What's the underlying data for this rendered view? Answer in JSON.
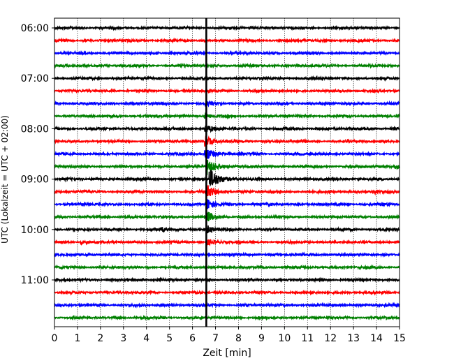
{
  "chart_data": {
    "type": "line",
    "title": "",
    "xlabel": "Zeit  [min]",
    "ylabel": "UTC (Lokalzeit = UTC + 02:00)",
    "xlim": [
      0,
      15
    ],
    "x_ticks": [
      0,
      1,
      2,
      3,
      4,
      5,
      6,
      7,
      8,
      9,
      10,
      11,
      12,
      13,
      14,
      15
    ],
    "x_grid": true,
    "y_ticks": [
      {
        "label": "06:00",
        "row": 0
      },
      {
        "label": "07:00",
        "row": 4
      },
      {
        "label": "08:00",
        "row": 8
      },
      {
        "label": "09:00",
        "row": 12
      },
      {
        "label": "10:00",
        "row": 16
      },
      {
        "label": "11:00",
        "row": 20
      }
    ],
    "rows": 24,
    "row_minutes": 15,
    "row_colors": [
      "#000000",
      "#ff0000",
      "#0000ff",
      "#008000"
    ],
    "marker_minute": 6.6,
    "events": [
      {
        "row": 0,
        "minute": 1.2,
        "amplitude": 0.35
      },
      {
        "row": 1,
        "minute": 8.4,
        "amplitude": 0.3
      },
      {
        "row": 6,
        "minute": 6.6,
        "amplitude": 1.8
      },
      {
        "row": 7,
        "minute": 6.6,
        "amplitude": 2.5
      },
      {
        "row": 8,
        "minute": 6.6,
        "amplitude": 3.5
      },
      {
        "row": 9,
        "minute": 6.6,
        "amplitude": 4.5
      },
      {
        "row": 10,
        "minute": 6.6,
        "amplitude": 5.5
      },
      {
        "row": 11,
        "minute": 6.7,
        "amplitude": 7.0
      },
      {
        "row": 12,
        "minute": 6.8,
        "amplitude": 8.0
      },
      {
        "row": 13,
        "minute": 6.7,
        "amplitude": 5.0
      },
      {
        "row": 14,
        "minute": 6.7,
        "amplitude": 4.0
      },
      {
        "row": 15,
        "minute": 6.7,
        "amplitude": 3.5
      },
      {
        "row": 16,
        "minute": 6.7,
        "amplitude": 3.0
      },
      {
        "row": 17,
        "minute": 6.7,
        "amplitude": 2.0
      },
      {
        "row": 11,
        "minute": 14.9,
        "amplitude": 1.5
      },
      {
        "row": 13,
        "minute": 14.0,
        "amplitude": 1.3
      },
      {
        "row": 13,
        "minute": 12.0,
        "amplitude": 0.4
      },
      {
        "row": 16,
        "minute": 4.7,
        "amplitude": 1.2
      },
      {
        "row": 17,
        "minute": 1.2,
        "amplitude": 1.8
      },
      {
        "row": 20,
        "minute": 4.6,
        "amplitude": 0.8
      },
      {
        "row": 9,
        "minute": 10.8,
        "amplitude": 0.3
      },
      {
        "row": 12,
        "minute": 13.0,
        "amplitude": 0.3
      },
      {
        "row": 23,
        "minute": 2.8,
        "amplitude": 0.3
      }
    ]
  }
}
